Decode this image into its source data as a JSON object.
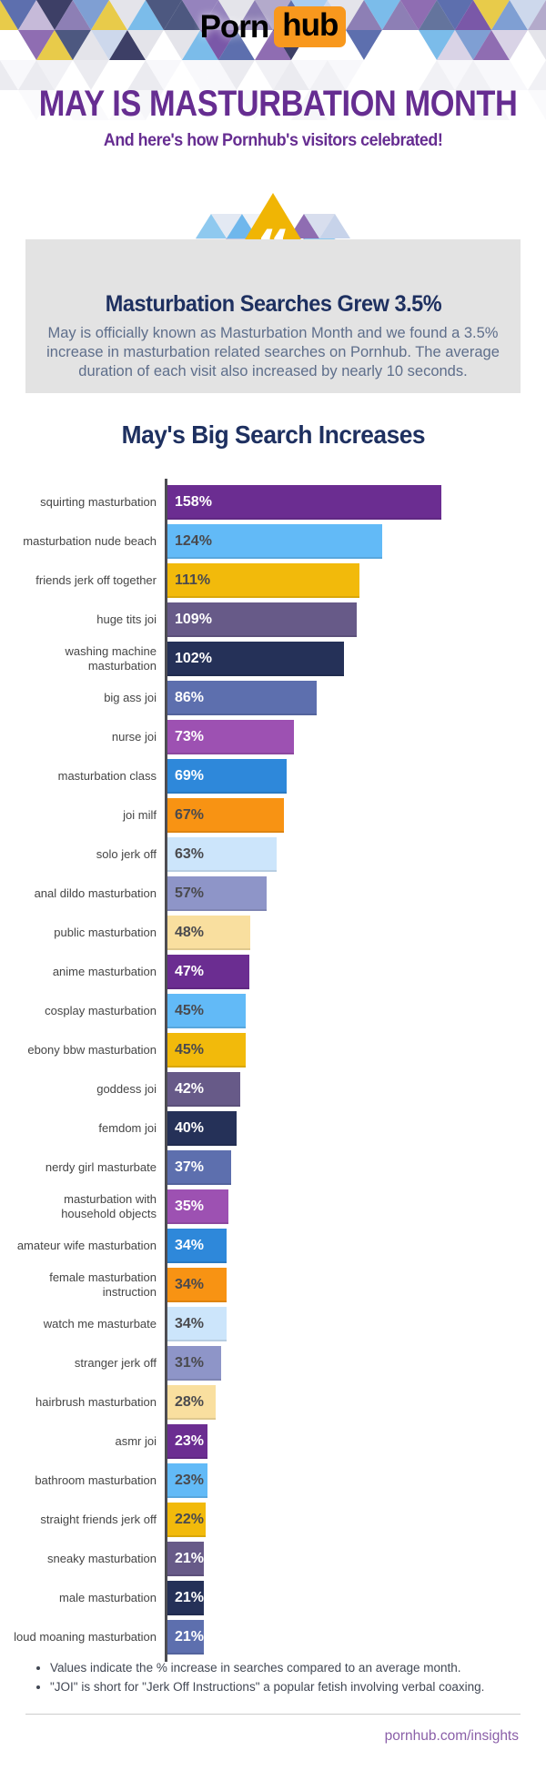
{
  "logo": {
    "part1": "Porn",
    "part2": "hub",
    "hub_bg": "#f8981d"
  },
  "header": {
    "title": "MAY IS MASTURBATION MONTH",
    "subtitle": "And here's how Pornhub's visitors celebrated!"
  },
  "quote_box": {
    "heading": "Masturbation Searches Grew 3.5%",
    "body": "May is officially known as Masturbation Month and we found a 3.5% increase in masturbation related searches on Pornhub. The average duration of each visit also increased by nearly 10 seconds."
  },
  "chart_data": {
    "type": "bar",
    "orientation": "horizontal",
    "title": "May's Big Search Increases",
    "unit": "%",
    "xlim": [
      0,
      160
    ],
    "grid": false,
    "legend": "none",
    "value_labels": "inside-left",
    "categories": [
      "squirting masturbation",
      "masturbation nude beach",
      "friends jerk off together",
      "huge tits joi",
      "washing machine\nmasturbation",
      "big ass joi",
      "nurse joi",
      "masturbation class",
      "joi milf",
      "solo jerk off",
      "anal dildo masturbation",
      "public masturbation",
      "anime masturbation",
      "cosplay masturbation",
      "ebony bbw masturbation",
      "goddess joi",
      "femdom joi",
      "nerdy girl masturbate",
      "masturbation with\nhousehold objects",
      "amateur wife masturbation",
      "female masturbation\ninstruction",
      "watch me masturbate",
      "stranger jerk off",
      "hairbrush masturbation",
      "asmr joi",
      "bathroom masturbation",
      "straight friends jerk off",
      "sneaky masturbation",
      "male masturbation",
      "loud moaning masturbation"
    ],
    "values": [
      158,
      124,
      111,
      109,
      102,
      86,
      73,
      69,
      67,
      63,
      57,
      48,
      47,
      45,
      45,
      42,
      40,
      37,
      35,
      34,
      34,
      34,
      31,
      28,
      23,
      23,
      22,
      21,
      21,
      21
    ],
    "palette": [
      "#6b2d91",
      "#62baf7",
      "#f2ba0b",
      "#675a88",
      "#253158",
      "#5d6fae",
      "#9d51b2",
      "#2e88da",
      "#f89313",
      "#cce5fb",
      "#8e95c8",
      "#f9df9f"
    ],
    "palette_text": [
      "white",
      "dark",
      "dark",
      "white",
      "white",
      "white",
      "white",
      "white",
      "dark",
      "dark",
      "dark",
      "dark"
    ],
    "axis_color": "#4d4d52",
    "dark_value_color": "#4a4a4e"
  },
  "footnotes": [
    "Values indicate the % increase in searches compared to an average month.",
    "\"JOI\" is short for \"Jerk Off Instructions\" a popular fetish involving verbal coaxing."
  ],
  "footer": {
    "link": "pornhub.com/insights"
  },
  "decor": {
    "diamond_color": "#f0b504",
    "quote_glyph": "“",
    "strip_colors": [
      "#8fc9ef",
      "#e3e9f3",
      "#6fb7ec",
      "#eff2f7",
      "#8f6db2",
      "#d8deee",
      "#c7d3ea",
      "#eceef4",
      "#8f6bb0",
      "#bcc8e6",
      "#dde3f0",
      "#56589c",
      "#8fc9ef",
      "#b8d3ee"
    ]
  },
  "banner": {
    "row_palette": [
      "#b3aacb",
      "#8d7fb5",
      "#d9d3e6",
      "#7f9fd3",
      "#64749d",
      "#a9cdf0",
      "#7bbcea",
      "#ffffff",
      "#e4e4ea",
      "#7a58a8",
      "#4d5880",
      "#cdd8ec",
      "#e8cb4a",
      "#9583bd",
      "#5d6fae",
      "#c6bad9",
      "#3d3f66",
      "#8f6db2"
    ],
    "fade_palette": [
      "#f1f1f5",
      "#ffffff",
      "#ebebf0",
      "#f8f8fb",
      "#ffffff"
    ],
    "fade2_palette": [
      "#fafafc",
      "#ffffff",
      "#ffffff",
      "#f6f6f9"
    ]
  }
}
